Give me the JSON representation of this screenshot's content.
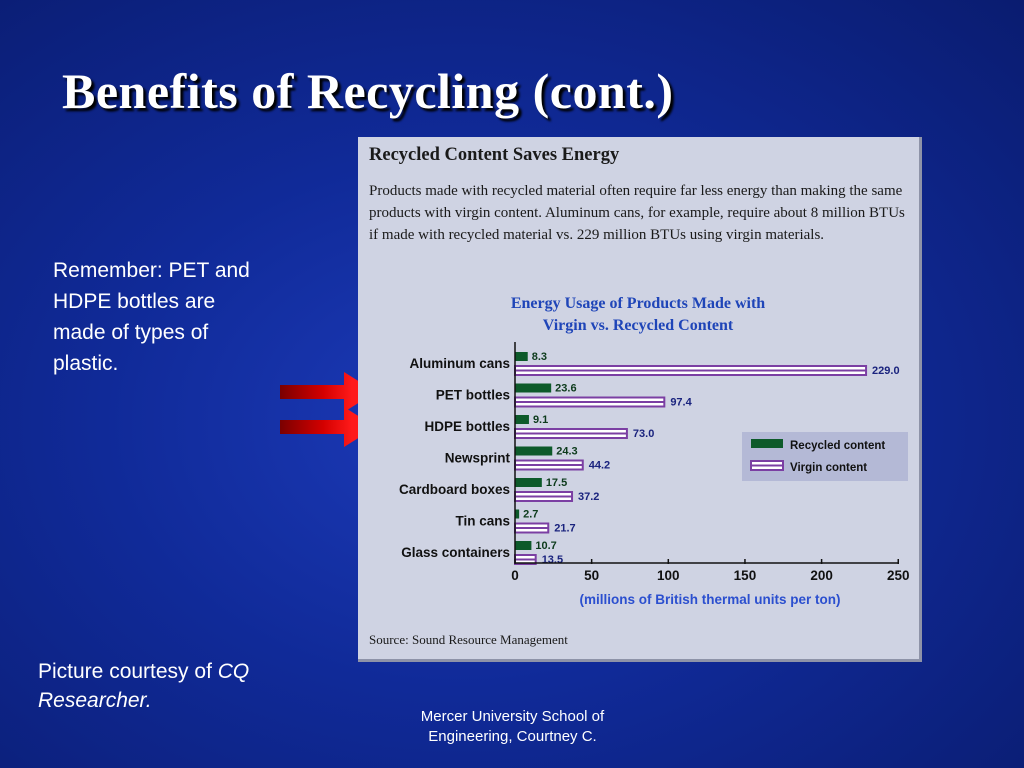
{
  "slide": {
    "title": "Benefits of Recycling (cont.)",
    "note": "Remember: PET and HDPE bottles are made of types of plastic.",
    "credit_prefix": "Picture courtesy of",
    "credit_source": "CQ Researcher.",
    "footer": "Mercer University School of Engineering, Courtney C."
  },
  "figure": {
    "heading": "Recycled Content Saves Energy",
    "description": "Products made with recycled material often require far less energy than making the same products with virgin content. Aluminum cans, for example, require about 8 million BTUs if made with recycled material vs. 229 million BTUs using virgin materials.",
    "source": "Source: Sound Resource Management"
  },
  "arrows": {
    "color": "#ff1a1a",
    "dark_color": "#7a0000",
    "points_to": [
      "PET bottles",
      "HDPE bottles"
    ]
  },
  "chart_data": {
    "type": "bar",
    "orientation": "horizontal",
    "title_lines": [
      "Energy Usage of Products Made with",
      "Virgin vs. Recycled Content"
    ],
    "categories": [
      "Aluminum cans",
      "PET bottles",
      "HDPE bottles",
      "Newsprint",
      "Cardboard boxes",
      "Tin cans",
      "Glass containers"
    ],
    "series": [
      {
        "name": "Recycled content",
        "values": [
          8.3,
          23.6,
          9.1,
          24.3,
          17.5,
          2.7,
          10.7
        ],
        "color": "#0d5a2a"
      },
      {
        "name": "Virgin content",
        "values": [
          229.0,
          97.4,
          73.0,
          44.2,
          37.2,
          21.7,
          13.5
        ],
        "color": "#7b3fa3"
      }
    ],
    "xlabel": "(millions of British thermal units per ton)",
    "xlim": [
      0,
      250
    ],
    "xticks": [
      0,
      50,
      100,
      150,
      200,
      250
    ],
    "grid": false,
    "legend_position": "right",
    "title_color": "#1f45b8",
    "value_label_color": "#1a237e"
  }
}
